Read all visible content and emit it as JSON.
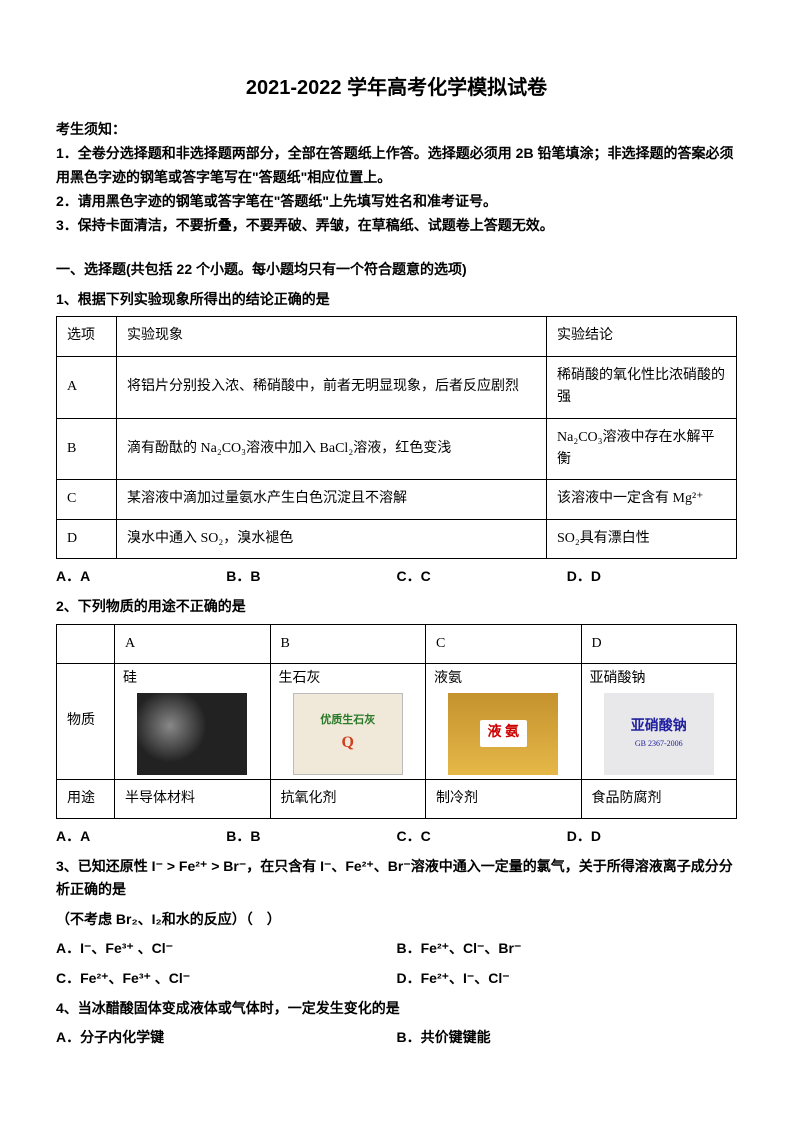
{
  "title": "2021-2022 学年高考化学模拟试卷",
  "notice": {
    "heading": "考生须知：",
    "items": [
      "1．全卷分选择题和非选择题两部分，全部在答题纸上作答。选择题必须用 2B 铅笔填涂；非选择题的答案必须用黑色字迹的钢笔或答字笔写在\"答题纸\"相应位置上。",
      "2．请用黑色字迹的钢笔或答字笔在\"答题纸\"上先填写姓名和准考证号。",
      "3．保持卡面清洁，不要折叠，不要弄破、弄皱，在草稿纸、试题卷上答题无效。"
    ]
  },
  "section1": "一、选择题(共包括 22 个小题。每小题均只有一个符合题意的选项)",
  "q1": {
    "stem": "1、根据下列实验现象所得出的结论正确的是",
    "headers": [
      "选项",
      "实验现象",
      "实验结论"
    ],
    "rows": [
      [
        "A",
        "将铝片分别投入浓、稀硝酸中，前者无明显现象，后者反应剧烈",
        "稀硝酸的氧化性比浓硝酸的强"
      ],
      [
        "B",
        "滴有酚酞的 Na₂CO₃溶液中加入 BaCl₂溶液，红色变浅",
        "Na₂CO₃溶液中存在水解平衡"
      ],
      [
        "C",
        "某溶液中滴加过量氨水产生白色沉淀且不溶解",
        "该溶液中一定含有 Mg²⁺"
      ],
      [
        "D",
        "溴水中通入 SO₂，溴水褪色",
        "SO₂具有漂白性"
      ]
    ],
    "options": [
      "A．A",
      "B．B",
      "C．C",
      "D．D"
    ]
  },
  "q2": {
    "stem": "2、下列物质的用途不正确的是",
    "header_row": [
      "",
      "A",
      "B",
      "C",
      "D"
    ],
    "substance_label": "物质",
    "substances": [
      "硅",
      "生石灰",
      "液氨",
      "亚硝酸钠"
    ],
    "img_labels": {
      "lime_top": "优质生石灰",
      "ammonia": "液 氨",
      "nitrite_big": "亚硝酸钠",
      "nitrite_small": "GB 2367-2006"
    },
    "use_label": "用途",
    "uses": [
      "半导体材料",
      "抗氧化剂",
      "制冷剂",
      "食品防腐剂"
    ],
    "options": [
      "A．A",
      "B．B",
      "C．C",
      "D．D"
    ]
  },
  "q3": {
    "stem_part1": "3、已知还原性 I⁻ > Fe²⁺ > Br⁻，在只含有 I⁻、Fe²⁺、Br⁻溶液中通入一定量的氯气，关于所得溶液离子成分分析正确的是",
    "stem_part2": "（不考虑 Br₂、I₂和水的反应）（　）",
    "options": [
      "A．I⁻、Fe³⁺ 、Cl⁻",
      "B．Fe²⁺、Cl⁻、Br⁻",
      "C．Fe²⁺、Fe³⁺ 、Cl⁻",
      "D．Fe²⁺、I⁻、Cl⁻"
    ]
  },
  "q4": {
    "stem": "4、当冰醋酸固体变成液体或气体时，一定发生变化的是",
    "options": [
      "A．分子内化学键",
      "B．共价键键能"
    ]
  },
  "colors": {
    "text": "#000000",
    "background": "#ffffff",
    "border": "#000000"
  }
}
